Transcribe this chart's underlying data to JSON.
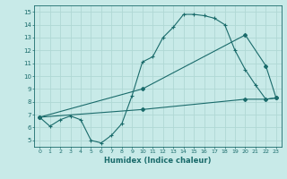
{
  "background_color": "#c8eae8",
  "grid_color": "#b0d8d4",
  "line_color": "#1a6b6b",
  "xlabel": "Humidex (Indice chaleur)",
  "xlim": [
    -0.5,
    23.5
  ],
  "ylim": [
    4.5,
    15.5
  ],
  "yticks": [
    5,
    6,
    7,
    8,
    9,
    10,
    11,
    12,
    13,
    14,
    15
  ],
  "xticks": [
    0,
    1,
    2,
    3,
    4,
    5,
    6,
    7,
    8,
    9,
    10,
    11,
    12,
    13,
    14,
    15,
    16,
    17,
    18,
    19,
    20,
    21,
    22,
    23
  ],
  "line1_x": [
    0,
    1,
    2,
    3,
    4,
    5,
    6,
    7,
    8,
    9,
    10,
    11,
    12,
    13,
    14,
    15,
    16,
    17,
    18,
    19,
    20,
    21,
    22,
    23
  ],
  "line1_y": [
    6.8,
    6.1,
    6.6,
    6.9,
    6.6,
    5.0,
    4.8,
    5.4,
    6.3,
    8.5,
    11.1,
    11.5,
    13.0,
    13.8,
    14.8,
    14.8,
    14.7,
    14.5,
    14.0,
    12.0,
    10.5,
    9.3,
    8.2,
    8.3
  ],
  "line2_x": [
    0,
    10,
    20,
    22,
    23
  ],
  "line2_y": [
    6.8,
    9.0,
    13.2,
    10.8,
    8.3
  ],
  "line3_x": [
    0,
    10,
    20,
    22,
    23
  ],
  "line3_y": [
    6.8,
    7.4,
    8.2,
    8.2,
    8.3
  ]
}
